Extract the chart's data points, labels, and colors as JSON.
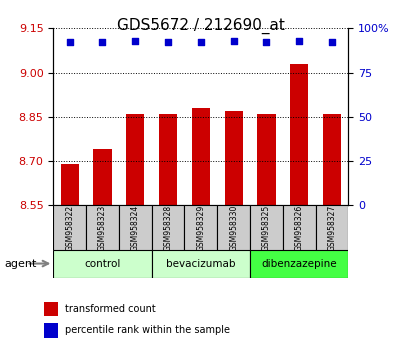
{
  "title": "GDS5672 / 212690_at",
  "samples": [
    "GSM958322",
    "GSM958323",
    "GSM958324",
    "GSM958328",
    "GSM958329",
    "GSM958330",
    "GSM958325",
    "GSM958326",
    "GSM958327"
  ],
  "bar_values": [
    8.69,
    8.74,
    8.86,
    8.86,
    8.88,
    8.87,
    8.86,
    9.03,
    8.86
  ],
  "percentile_values": [
    92,
    92,
    93,
    92,
    92,
    93,
    92,
    93,
    92
  ],
  "ylim_left": [
    8.55,
    9.15
  ],
  "ylim_right": [
    0,
    100
  ],
  "yticks_left": [
    8.55,
    8.7,
    8.85,
    9.0,
    9.15
  ],
  "yticks_right": [
    0,
    25,
    50,
    75,
    100
  ],
  "bar_color": "#cc0000",
  "dot_color": "#0000cc",
  "groups": [
    {
      "label": "control",
      "start": 0,
      "end": 3,
      "color": "#ccffcc"
    },
    {
      "label": "bevacizumab",
      "start": 3,
      "end": 6,
      "color": "#ccffcc"
    },
    {
      "label": "dibenzazepine",
      "start": 6,
      "end": 9,
      "color": "#44ff44"
    }
  ],
  "group_colors": [
    "#ccffcc",
    "#ccffcc",
    "#44ff44"
  ],
  "agent_label": "agent",
  "legend_bar_label": "transformed count",
  "legend_dot_label": "percentile rank within the sample",
  "tick_label_color_left": "#cc0000",
  "tick_label_color_right": "#0000cc",
  "sample_box_color": "#cccccc"
}
